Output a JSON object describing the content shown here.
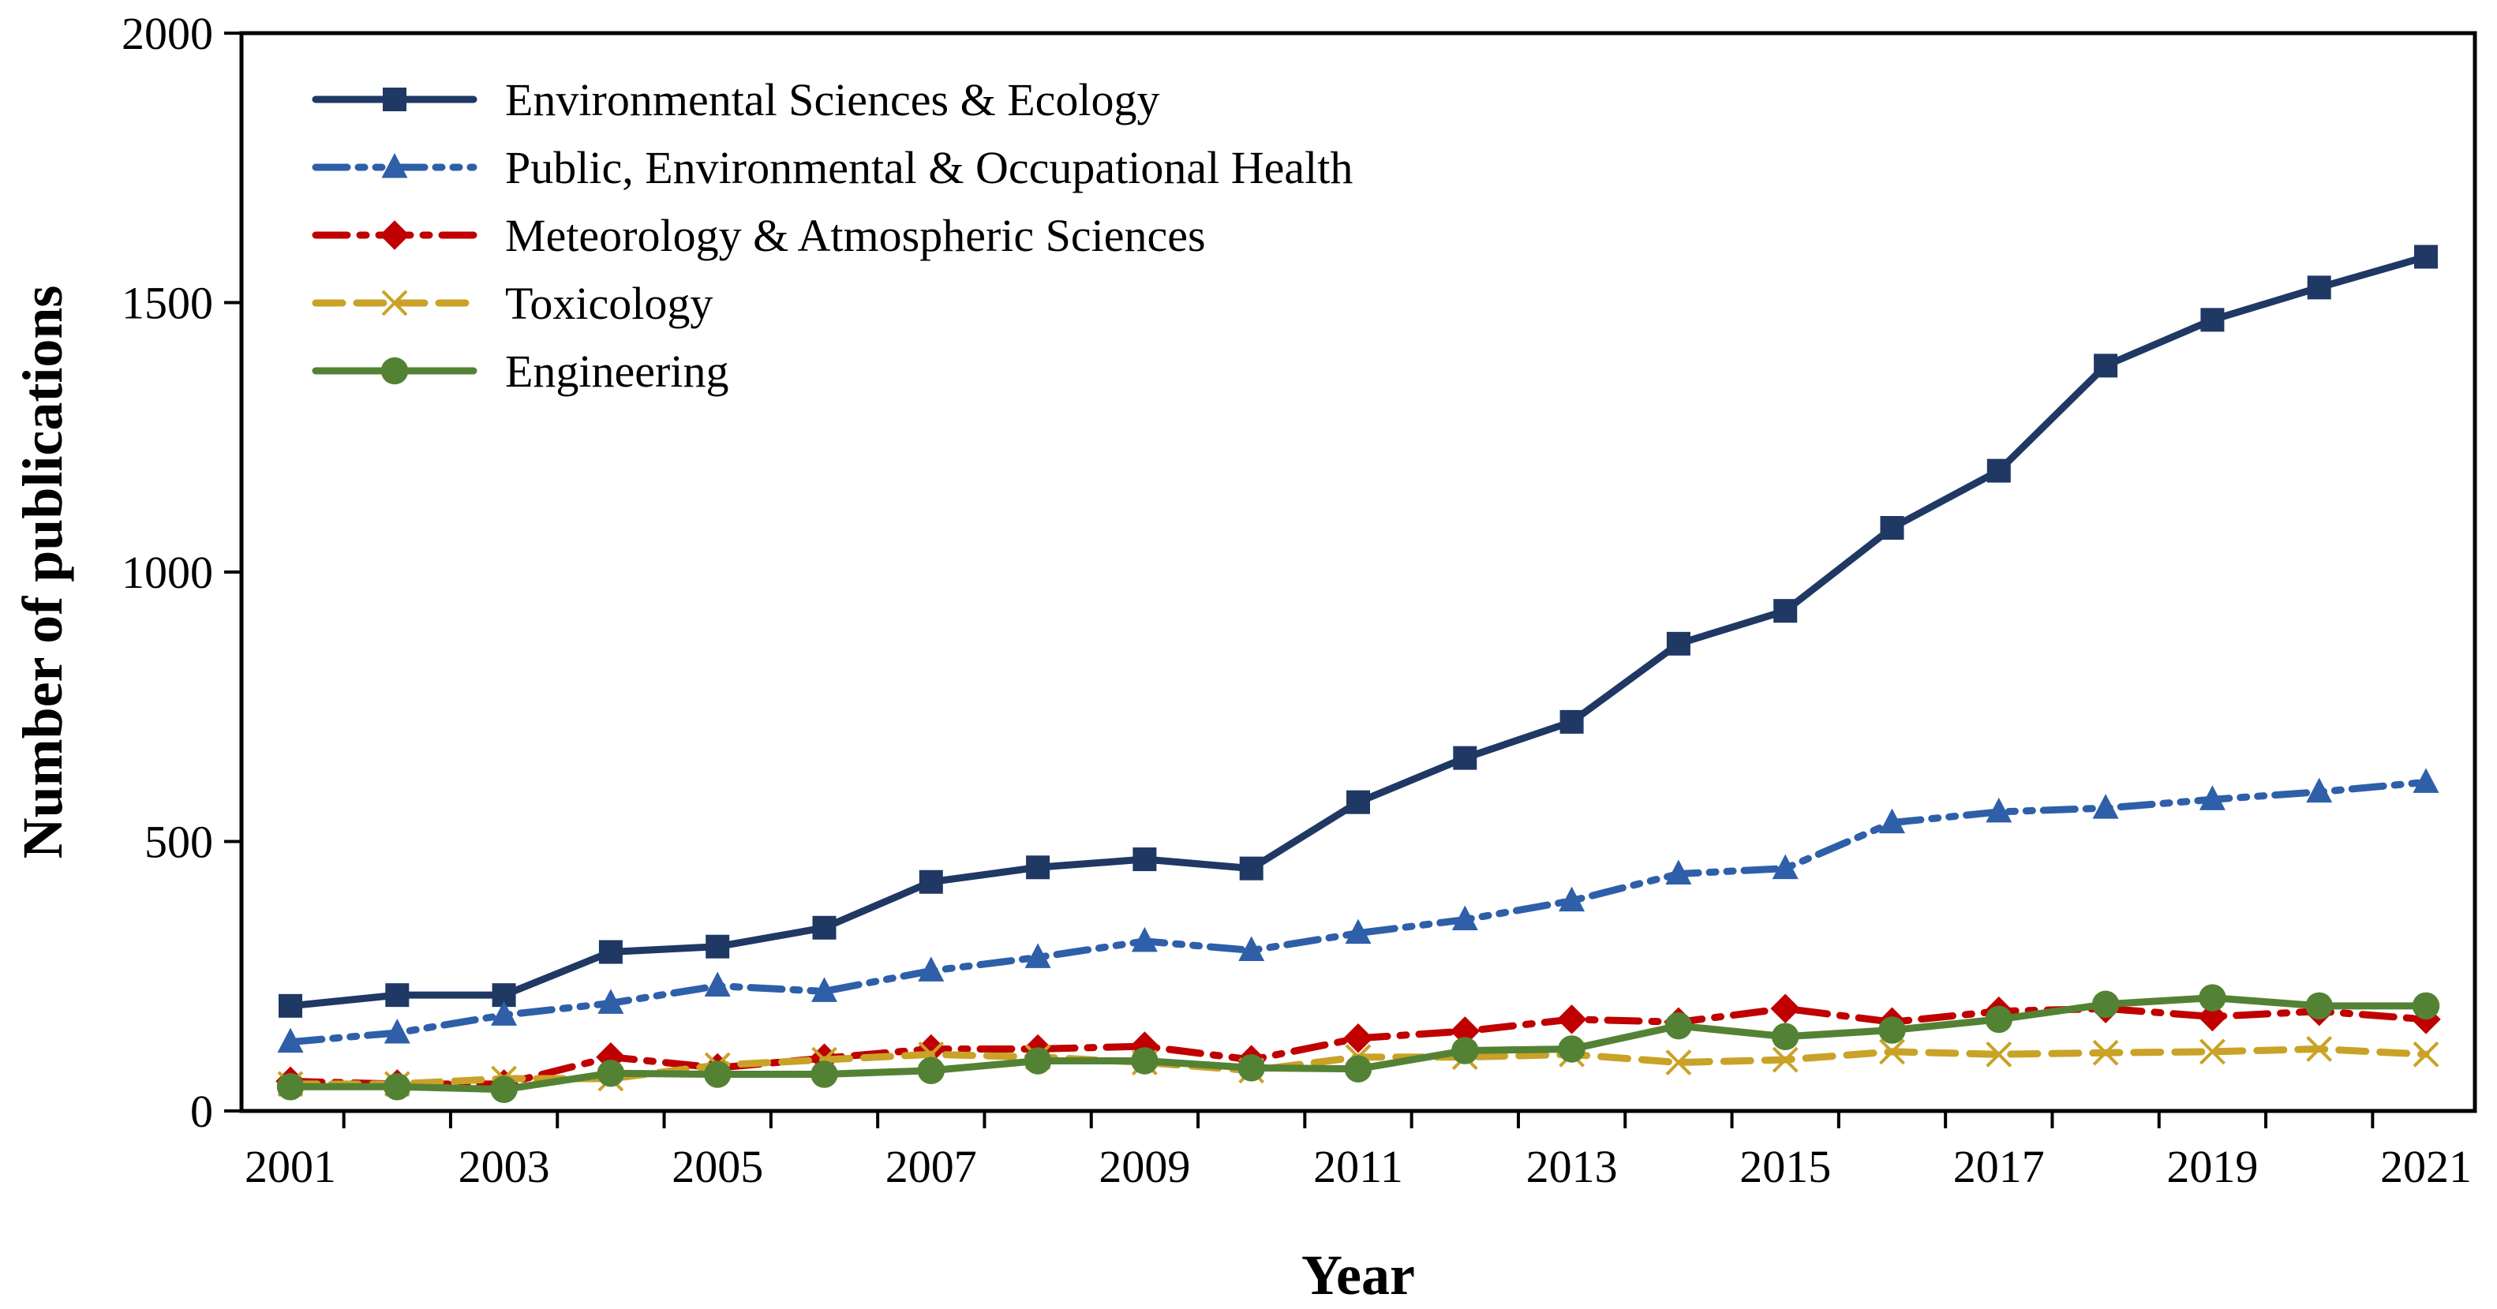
{
  "chart_data": {
    "type": "line",
    "title": "",
    "xlabel": "Year",
    "ylabel": "Number of publications",
    "x": [
      2001,
      2002,
      2003,
      2004,
      2005,
      2006,
      2007,
      2008,
      2009,
      2010,
      2011,
      2012,
      2013,
      2014,
      2015,
      2016,
      2017,
      2018,
      2019,
      2020,
      2021
    ],
    "x_tick_labels": [
      "2001",
      "2003",
      "2005",
      "2007",
      "2009",
      "2011",
      "2013",
      "2015",
      "2017",
      "2019",
      "2021"
    ],
    "y_tick_labels": [
      "0",
      "500",
      "1000",
      "1500",
      "2000"
    ],
    "ylim": [
      0,
      2000
    ],
    "xlim": [
      2001,
      2021
    ],
    "grid": false,
    "legend_position": "top-left",
    "series": [
      {
        "name": "Environmental Sciences & Ecology",
        "color": "#1f3864",
        "marker": "square",
        "line_style": "solid",
        "values": [
          195,
          215,
          215,
          295,
          305,
          340,
          425,
          452,
          467,
          450,
          573,
          655,
          722,
          867,
          928,
          1082,
          1188,
          1383,
          1468,
          1528,
          1585
        ]
      },
      {
        "name": "Public, Environmental & Occupational Health",
        "color": "#2e5fa8",
        "marker": "triangle",
        "line_style": "dash-dot-dot",
        "values": [
          128,
          145,
          178,
          200,
          232,
          222,
          260,
          285,
          315,
          298,
          330,
          355,
          390,
          440,
          450,
          535,
          555,
          562,
          578,
          592,
          610
        ]
      },
      {
        "name": "Meteorology & Atmospheric Sciences",
        "color": "#c00000",
        "marker": "diamond",
        "line_style": "dash-dot",
        "values": [
          55,
          50,
          50,
          100,
          80,
          98,
          115,
          115,
          120,
          95,
          135,
          148,
          170,
          165,
          190,
          165,
          185,
          190,
          175,
          185,
          170
        ]
      },
      {
        "name": "Toxicology",
        "color": "#c9a227",
        "marker": "x",
        "line_style": "dashed",
        "values": [
          50,
          50,
          60,
          60,
          85,
          95,
          105,
          100,
          90,
          75,
          100,
          100,
          105,
          90,
          95,
          110,
          105,
          108,
          110,
          115,
          105
        ]
      },
      {
        "name": "Engineering",
        "color": "#548235",
        "marker": "circle",
        "line_style": "solid",
        "values": [
          45,
          45,
          40,
          70,
          68,
          68,
          75,
          93,
          93,
          80,
          78,
          112,
          115,
          158,
          138,
          150,
          170,
          198,
          210,
          195,
          195
        ]
      }
    ]
  }
}
